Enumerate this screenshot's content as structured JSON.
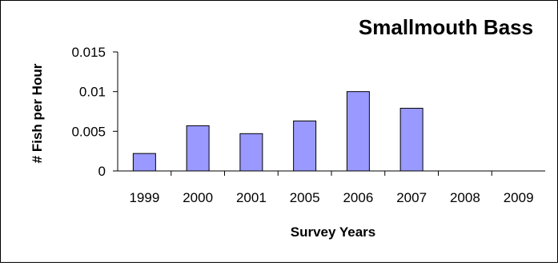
{
  "chart_data": {
    "type": "bar",
    "title": "Smallmouth Bass",
    "xlabel": "Survey Years",
    "ylabel": "# Fish per Hour",
    "categories": [
      "1999",
      "2000",
      "2001",
      "2005",
      "2006",
      "2007",
      "2008",
      "2009"
    ],
    "values": [
      0.0022,
      0.0057,
      0.0047,
      0.0063,
      0.01,
      0.0079,
      0,
      0
    ],
    "ylim": [
      0,
      0.015
    ],
    "yticks": [
      "0",
      "0.005",
      "0.01",
      "0.015"
    ],
    "grid": false,
    "legend": "none",
    "colors": {
      "bar_fill": "#9999ff",
      "bar_stroke": "#000000"
    }
  }
}
